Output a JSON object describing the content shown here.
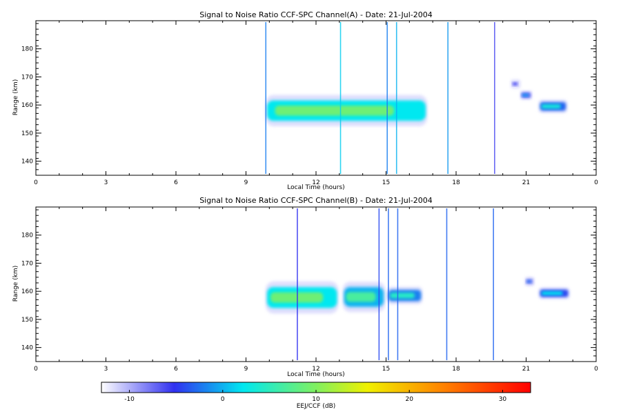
{
  "chart_data": [
    {
      "type": "heatmap",
      "title": "Signal to Noise Ratio CCF-SPC Channel(A) - Date: 21-Jul-2004",
      "xlabel": "Local Time (hours)",
      "ylabel": "Range (km)",
      "xlim": [
        0,
        24
      ],
      "ylim": [
        135,
        190
      ],
      "x_ticks": [
        "0",
        "3",
        "6",
        "9",
        "12",
        "15",
        "18",
        "21",
        "0"
      ],
      "y_ticks": [
        "140",
        "150",
        "160",
        "170",
        "180"
      ],
      "blobs": [
        {
          "t0": 9.9,
          "t1": 16.7,
          "r_center": 158,
          "r_half": 3.6,
          "intensity": 7
        },
        {
          "t0": 21.6,
          "t1": 22.7,
          "r_center": 159.5,
          "r_half": 1.5,
          "intensity": 2
        },
        {
          "t0": 20.8,
          "t1": 21.2,
          "r_center": 163.5,
          "r_half": 1.0,
          "intensity": -2
        },
        {
          "t0": 20.4,
          "t1": 20.7,
          "r_center": 167.5,
          "r_half": 1.0,
          "intensity": -6
        }
      ],
      "streaks": [
        {
          "t": 9.85,
          "intensity": -3
        },
        {
          "t": 13.05,
          "intensity": 0
        },
        {
          "t": 15.05,
          "intensity": -3
        },
        {
          "t": 15.45,
          "intensity": -1
        },
        {
          "t": 17.65,
          "intensity": -2
        },
        {
          "t": 19.65,
          "intensity": -7
        }
      ]
    },
    {
      "type": "heatmap",
      "title": "Signal to Noise Ratio CCF-SPC Channel(B) - Date: 21-Jul-2004",
      "xlabel": "Local Time (hours)",
      "ylabel": "Range (km)",
      "xlim": [
        0,
        24
      ],
      "ylim": [
        135,
        190
      ],
      "x_ticks": [
        "0",
        "3",
        "6",
        "9",
        "12",
        "15",
        "18",
        "21",
        "0"
      ],
      "y_ticks": [
        "140",
        "150",
        "160",
        "170",
        "180"
      ],
      "blobs": [
        {
          "t0": 9.9,
          "t1": 12.9,
          "r_center": 157.8,
          "r_half": 3.7,
          "intensity": 7
        },
        {
          "t0": 13.2,
          "t1": 14.9,
          "r_center": 158,
          "r_half": 3.5,
          "intensity": 5
        },
        {
          "t0": 15.1,
          "t1": 16.5,
          "r_center": 158.5,
          "r_half": 2.0,
          "intensity": 3
        },
        {
          "t0": 21.6,
          "t1": 22.8,
          "r_center": 159.3,
          "r_half": 1.3,
          "intensity": 1
        },
        {
          "t0": 21.0,
          "t1": 21.3,
          "r_center": 163.5,
          "r_half": 1.0,
          "intensity": -4
        }
      ],
      "streaks": [
        {
          "t": 11.2,
          "intensity": -6
        },
        {
          "t": 14.7,
          "intensity": -5
        },
        {
          "t": 15.1,
          "intensity": -4
        },
        {
          "t": 15.5,
          "intensity": -4
        },
        {
          "t": 17.6,
          "intensity": -4
        },
        {
          "t": 19.6,
          "intensity": -4
        }
      ]
    }
  ],
  "colorbar": {
    "label": "EEJ/CCF (dB)",
    "min": -13,
    "max": 33,
    "ticks": [
      "-10",
      "0",
      "10",
      "20",
      "30"
    ],
    "tick_values": [
      -10,
      0,
      10,
      20,
      30
    ]
  }
}
